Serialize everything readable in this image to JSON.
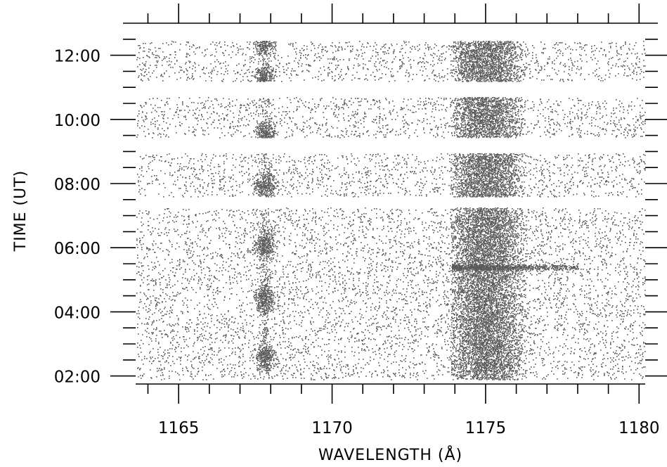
{
  "chart_data": {
    "type": "scatter",
    "style": "time-wavelength photon event image (spectrogram)",
    "xlabel": "WAVELENGTH (Å)",
    "ylabel": "TIME (UT)",
    "xlim": [
      1163.6,
      1180.2
    ],
    "ylim": [
      1.75,
      13.0
    ],
    "x_ticks": [
      1165,
      1170,
      1175,
      1180
    ],
    "x_tick_labels": [
      "1165",
      "1170",
      "1175",
      "1180"
    ],
    "y_ticks": [
      2,
      4,
      6,
      8,
      10,
      12
    ],
    "y_tick_labels": [
      "02:00",
      "04:00",
      "06:00",
      "08:00",
      "10:00",
      "12:00"
    ],
    "observation_windows_ut_hours": [
      [
        1.9,
        7.25
      ],
      [
        7.6,
        8.95
      ],
      [
        9.45,
        10.7
      ],
      [
        11.2,
        12.45
      ]
    ],
    "features": [
      {
        "feature": "narrow emission line",
        "center_angstrom": 1167.8,
        "bursts_ut_hours": [
          2.6,
          4.4,
          6.1,
          7.9,
          9.55,
          11.3,
          12.4
        ]
      },
      {
        "feature": "broad emission band",
        "range_angstrom": [
          1174.0,
          1176.2
        ],
        "center_angstrom": 1175.0
      },
      {
        "feature": "transient flare streak",
        "time_ut_hours": 5.4,
        "range_angstrom": [
          1173.9,
          1178.0
        ]
      }
    ],
    "grid": false,
    "legend": "none",
    "point_color": "#5a5a5a"
  }
}
